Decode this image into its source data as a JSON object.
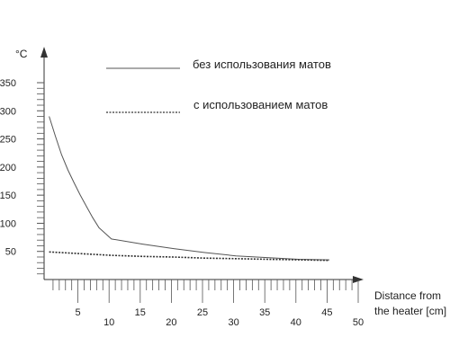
{
  "chart_data": {
    "type": "line",
    "ylabel": "°C",
    "xlabel_lines": [
      "Distance from",
      "the heater [cm]"
    ],
    "ylim": [
      0,
      350
    ],
    "xlim": [
      0,
      50
    ],
    "y_ticks": [
      50,
      100,
      150,
      200,
      250,
      300,
      350
    ],
    "x_ticks_upper": [
      5,
      15,
      25,
      35,
      45
    ],
    "x_ticks_lower": [
      10,
      20,
      30,
      40,
      50
    ],
    "grid": false,
    "legend_position": "top",
    "series": [
      {
        "name": "без использования матов",
        "style": "solid",
        "color": "#555555",
        "x": [
          5,
          6,
          7,
          8,
          9,
          10,
          11,
          12,
          13,
          15,
          20,
          25,
          30,
          35,
          40,
          45,
          50
        ],
        "y": [
          290,
          255,
          222,
          195,
          172,
          150,
          130,
          110,
          92,
          72,
          63,
          55,
          48,
          42,
          39,
          36,
          35
        ]
      },
      {
        "name": "с использованием матов",
        "style": "dashed",
        "color": "#333333",
        "x": [
          5,
          10,
          15,
          20,
          25,
          30,
          35,
          40,
          45,
          50
        ],
        "y": [
          49,
          46,
          43,
          41,
          40,
          38,
          37,
          36,
          35,
          34
        ]
      }
    ]
  }
}
